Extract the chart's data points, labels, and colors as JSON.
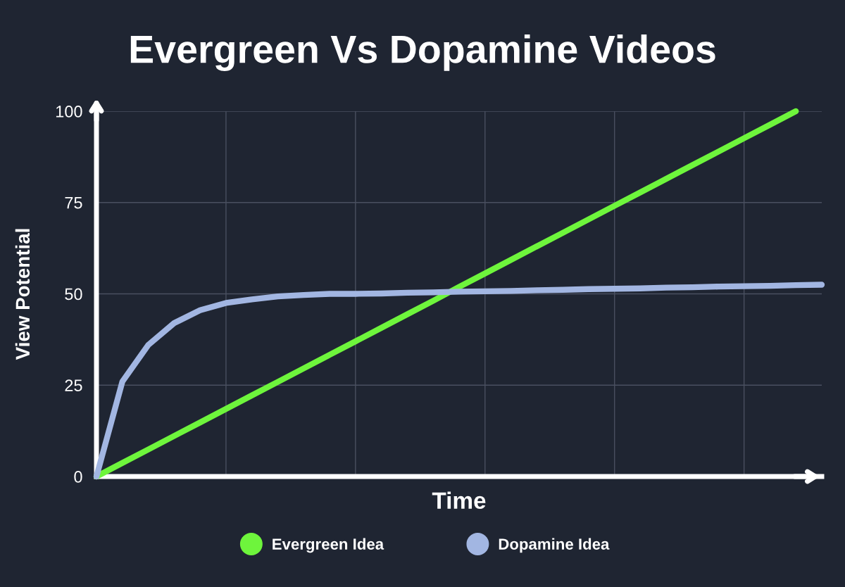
{
  "chart_data": {
    "type": "line",
    "title": "Evergreen Vs Dopamine Videos",
    "xlabel": "Time",
    "ylabel": "View Potential",
    "categories": [
      null,
      null,
      null,
      null,
      null,
      null,
      null,
      null,
      null,
      null,
      null,
      null,
      null,
      null,
      null,
      null,
      null,
      null,
      null,
      null,
      null,
      null,
      null,
      null,
      null,
      null,
      null,
      null,
      null
    ],
    "series": [
      {
        "name": "Evergreen Idea",
        "color": "#6ef53c",
        "values": [
          0,
          3.7,
          7.4,
          11.1,
          14.8,
          18.5,
          22.2,
          25.9,
          29.6,
          33.3,
          37,
          40.7,
          44.4,
          48.1,
          51.9,
          55.6,
          59.3,
          63,
          66.7,
          70.4,
          74.1,
          77.8,
          81.5,
          85.2,
          88.9,
          92.6,
          96.3,
          100,
          null
        ]
      },
      {
        "name": "Dopamine Idea",
        "color": "#a2b6e2",
        "values": [
          0,
          26,
          36,
          42,
          45.5,
          47.5,
          48.5,
          49.3,
          49.7,
          50,
          50,
          50.1,
          50.3,
          50.4,
          50.6,
          50.7,
          50.8,
          51,
          51.1,
          51.3,
          51.4,
          51.5,
          51.7,
          51.8,
          52,
          52.1,
          52.2,
          52.4,
          52.5
        ]
      }
    ],
    "ylim": [
      0,
      100
    ],
    "yticks": [
      0,
      25,
      50,
      75,
      100
    ],
    "grid": true,
    "legend": "bottom",
    "marker": "none",
    "line_style": "solid"
  }
}
